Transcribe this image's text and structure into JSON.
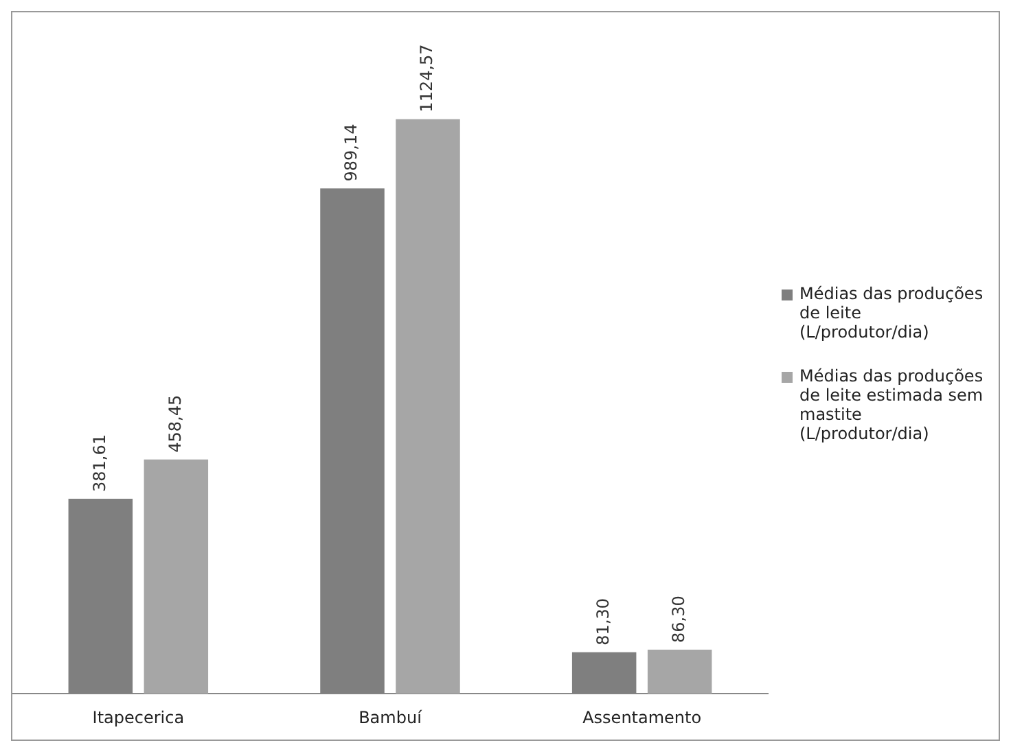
{
  "chart_data": {
    "type": "bar",
    "categories": [
      "Itapecerica",
      "Bambuí",
      "Assentamento"
    ],
    "series": [
      {
        "name": "Médias das produções de leite (L/produtor/dia)",
        "color": "#7f7f7f",
        "values": [
          381.61,
          989.14,
          81.3
        ],
        "value_labels": [
          "381,61",
          "989,14",
          "81,30"
        ]
      },
      {
        "name": "Médias das produções de leite estimada sem mastite (L/produtor/dia)",
        "color": "#a6a6a6",
        "values": [
          458.45,
          1124.57,
          86.3
        ],
        "value_labels": [
          "458,45",
          "1124,57",
          "86,30"
        ]
      }
    ],
    "legend": "right",
    "grid": false
  }
}
